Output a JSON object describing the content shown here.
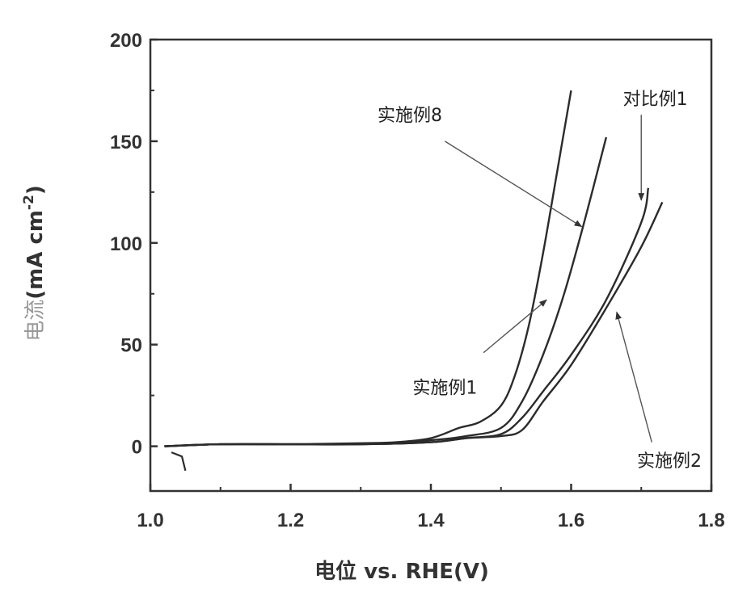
{
  "chart_data": {
    "type": "line",
    "title": "",
    "xlabel": "电位 vs. RHE(V)",
    "ylabel": {
      "prefix": "电流",
      "main": "(mA cm",
      "sup": "-2",
      "suffix": ")"
    },
    "xlim": [
      1.0,
      1.8
    ],
    "ylim": [
      -22,
      200
    ],
    "xticks": [
      "1.0",
      "1.2",
      "1.4",
      "1.6",
      "1.8"
    ],
    "yticks": [
      "0",
      "50",
      "100",
      "150",
      "200"
    ],
    "grid": false,
    "series": [
      {
        "name": "实施例1",
        "x": [
          1.02,
          1.05,
          1.1,
          1.2,
          1.3,
          1.35,
          1.4,
          1.44,
          1.47,
          1.5,
          1.52,
          1.54,
          1.56,
          1.58,
          1.6
        ],
        "y": [
          0,
          0.5,
          1,
          1,
          1.5,
          2,
          4,
          9,
          12,
          20,
          35,
          60,
          95,
          135,
          175
        ]
      },
      {
        "name": "实施例8",
        "x": [
          1.02,
          1.1,
          1.2,
          1.3,
          1.4,
          1.45,
          1.5,
          1.53,
          1.56,
          1.59,
          1.62,
          1.65
        ],
        "y": [
          0,
          1,
          1,
          1,
          3,
          5,
          9,
          22,
          45,
          75,
          112,
          152
        ]
      },
      {
        "name": "对比例1",
        "x": [
          1.02,
          1.1,
          1.2,
          1.3,
          1.4,
          1.45,
          1.5,
          1.53,
          1.56,
          1.6,
          1.65,
          1.7,
          1.71
        ],
        "y": [
          0,
          1,
          1,
          1,
          2,
          4,
          6,
          14,
          27,
          45,
          72,
          110,
          127
        ]
      },
      {
        "name": "实施例2",
        "x": [
          1.02,
          1.1,
          1.2,
          1.3,
          1.4,
          1.45,
          1.5,
          1.53,
          1.56,
          1.6,
          1.65,
          1.7,
          1.73
        ],
        "y": [
          0,
          1,
          1,
          1,
          2,
          4,
          5,
          8,
          22,
          40,
          68,
          98,
          120
        ]
      }
    ],
    "annotations": [
      {
        "text": "实施例8",
        "target": "实施例8"
      },
      {
        "text": "对比例1",
        "target": "对比例1"
      },
      {
        "text": "实施例1",
        "target": "实施例1"
      },
      {
        "text": "实施例2",
        "target": "实施例2"
      }
    ],
    "start_artifact": {
      "x": [
        1.03,
        1.045,
        1.05
      ],
      "y": [
        -3,
        -5,
        -12
      ]
    }
  }
}
